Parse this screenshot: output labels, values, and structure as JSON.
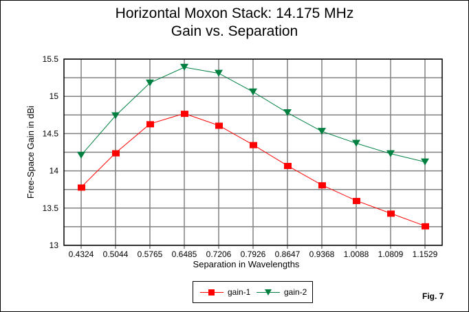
{
  "chart_data": {
    "type": "line",
    "title": "Horizontal Moxon Stack: 14.175 MHz",
    "subtitle": "Gain vs. Separation",
    "xlabel": "Separation in Wavelengths",
    "ylabel": "Free-Space Gain in dBi",
    "categories": [
      "0.4324",
      "0.5044",
      "0.5765",
      "0.6485",
      "0.7206",
      "0.7926",
      "0.8647",
      "0.9368",
      "1.0088",
      "1.0809",
      "1.1529"
    ],
    "ylim": [
      13,
      15.5
    ],
    "yticks": [
      "13",
      "13.5",
      "14",
      "14.5",
      "15",
      "15.5"
    ],
    "grid": true,
    "legend_position": "bottom-center",
    "series": [
      {
        "name": "gain-1",
        "color": "#ff0000",
        "marker": "square",
        "values": [
          13.78,
          14.24,
          14.63,
          14.77,
          14.61,
          14.35,
          14.07,
          13.81,
          13.6,
          13.43,
          13.26
        ]
      },
      {
        "name": "gain-2",
        "color": "#008040",
        "marker": "triangle-down",
        "values": [
          14.21,
          14.74,
          15.18,
          15.39,
          15.31,
          15.06,
          14.78,
          14.53,
          14.37,
          14.23,
          14.12
        ]
      }
    ],
    "annotation": "Fig. 7"
  }
}
